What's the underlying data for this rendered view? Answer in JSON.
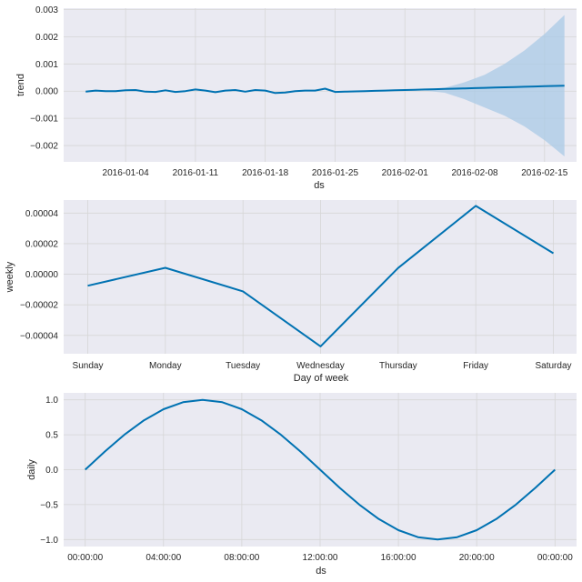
{
  "chart_data": [
    {
      "type": "line",
      "xlabel": "ds",
      "ylabel": "trend",
      "x_tick_labels": [
        "2016-01-04",
        "2016-01-11",
        "2016-01-18",
        "2016-01-25",
        "2016-02-01",
        "2016-02-08",
        "2016-02-15"
      ],
      "y_tick_labels": [
        "−0.002",
        "−0.001",
        "0.000",
        "0.001",
        "0.002",
        "0.003"
      ],
      "xlim": [
        "2015-12-28T19:00",
        "2016-02-18T05:00"
      ],
      "ylim": [
        -0.0026,
        0.00305
      ],
      "grid": true,
      "background": "#eaeaf2",
      "line_color": "#0072b2",
      "band_color": "#a9c9e6",
      "series": [
        {
          "x": [
            "2015-12-31",
            "2016-01-01",
            "2016-01-02",
            "2016-01-03",
            "2016-01-04",
            "2016-01-05",
            "2016-01-06",
            "2016-01-07",
            "2016-01-08",
            "2016-01-09",
            "2016-01-10",
            "2016-01-11",
            "2016-01-12",
            "2016-01-13",
            "2016-01-14",
            "2016-01-15",
            "2016-01-16",
            "2016-01-17",
            "2016-01-18",
            "2016-01-19",
            "2016-01-20",
            "2016-01-21",
            "2016-01-22",
            "2016-01-23",
            "2016-01-24",
            "2016-01-25",
            "2016-01-26",
            "2016-01-27",
            "2016-01-28",
            "2016-01-29",
            "2016-01-30",
            "2016-01-31",
            "2016-02-01",
            "2016-02-02",
            "2016-02-03",
            "2016-02-04",
            "2016-02-05",
            "2016-02-06",
            "2016-02-07",
            "2016-02-08",
            "2016-02-09",
            "2016-02-10",
            "2016-02-11",
            "2016-02-12",
            "2016-02-13",
            "2016-02-14",
            "2016-02-15",
            "2016-02-16",
            "2016-02-17"
          ],
          "y": [
            -2e-05,
            2e-05,
            0.0,
            0.0,
            3e-05,
            4e-05,
            -2e-05,
            -3e-05,
            3e-05,
            -3e-05,
            0.0,
            6e-05,
            2e-05,
            -4e-05,
            2e-05,
            4e-05,
            -2e-05,
            4e-05,
            2e-05,
            -7e-05,
            -5e-05,
            0.0,
            2e-05,
            2e-05,
            9e-05,
            -3e-05,
            -2e-05,
            -1e-05,
            0.0,
            1e-05,
            2e-05,
            3e-05,
            4e-05,
            5e-05,
            6e-05,
            7e-05,
            8e-05,
            9e-05,
            0.0001,
            0.00011,
            0.00012,
            0.00013,
            0.00014,
            0.00015,
            0.00016,
            0.00017,
            0.00018,
            0.00019,
            0.0002
          ]
        }
      ],
      "uncertainty": {
        "x": [
          "2016-02-01",
          "2016-02-03",
          "2016-02-05",
          "2016-02-07",
          "2016-02-09",
          "2016-02-11",
          "2016-02-13",
          "2016-02-15",
          "2016-02-17"
        ],
        "upper": [
          4e-05,
          6e-05,
          0.00012,
          0.00033,
          0.0006,
          0.001,
          0.0015,
          0.0021,
          0.0028
        ],
        "lower": [
          4e-05,
          2e-05,
          -6e-05,
          -0.0003,
          -0.0006,
          -0.0009,
          -0.0013,
          -0.0018,
          -0.0024
        ]
      }
    },
    {
      "type": "line",
      "xlabel": "Day of week",
      "ylabel": "weekly",
      "categories": [
        "Sunday",
        "Monday",
        "Tuesday",
        "Wednesday",
        "Thursday",
        "Friday",
        "Saturday"
      ],
      "y_tick_labels": [
        "−0.00004",
        "−0.00002",
        "0.00000",
        "0.00002",
        "0.00004"
      ],
      "ylim": [
        -5.2e-05,
        4.85e-05
      ],
      "grid": true,
      "background": "#eaeaf2",
      "line_color": "#0072b2",
      "series": [
        {
          "values": [
            -7.5e-06,
            4.2e-06,
            -1.12e-05,
            -4.72e-05,
            4.1e-06,
            4.47e-05,
            1.37e-05
          ]
        }
      ]
    },
    {
      "type": "line",
      "xlabel": "ds",
      "ylabel": "daily",
      "x_tick_labels": [
        "00:00:00",
        "04:00:00",
        "08:00:00",
        "12:00:00",
        "16:00:00",
        "20:00:00",
        "00:00:00"
      ],
      "y_tick_labels": [
        "−1.0",
        "−0.5",
        "0.0",
        "0.5",
        "1.0"
      ],
      "xlim_hours": [
        -1.1,
        25.1
      ],
      "ylim": [
        -1.1,
        1.1
      ],
      "grid": true,
      "background": "#eaeaf2",
      "line_color": "#0072b2",
      "series": [
        {
          "x_hours": [
            0,
            1,
            2,
            3,
            4,
            5,
            6,
            7,
            8,
            9,
            10,
            11,
            12,
            13,
            14,
            15,
            16,
            17,
            18,
            19,
            20,
            21,
            22,
            23,
            24
          ],
          "y": [
            0.0,
            0.259,
            0.5,
            0.707,
            0.866,
            0.966,
            1.0,
            0.966,
            0.866,
            0.707,
            0.5,
            0.259,
            0.0,
            -0.259,
            -0.5,
            -0.707,
            -0.866,
            -0.966,
            -1.0,
            -0.966,
            -0.866,
            -0.707,
            -0.5,
            -0.259,
            0.0
          ]
        }
      ]
    }
  ]
}
